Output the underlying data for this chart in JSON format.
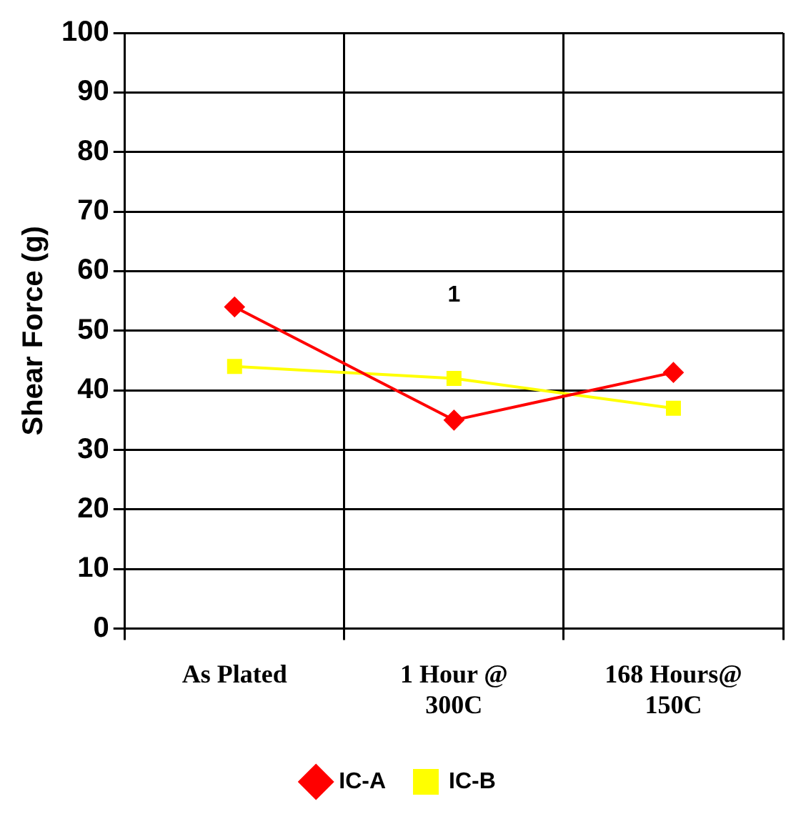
{
  "chart_data": {
    "type": "line",
    "ylabel": "Shear Force (g)",
    "categories": [
      "As Plated",
      "1 Hour @ 300C",
      "168 Hours@ 150C"
    ],
    "series": [
      {
        "name": "IC-A",
        "color": "#ff0000",
        "values": [
          54,
          35,
          43
        ],
        "marker": "diamond"
      },
      {
        "name": "IC-B",
        "color": "#ffff00",
        "values": [
          44,
          42,
          37
        ],
        "marker": "square"
      }
    ],
    "ylim": [
      0,
      100
    ],
    "yticks": [
      0,
      10,
      20,
      30,
      40,
      50,
      60,
      70,
      80,
      90,
      100
    ],
    "grid": true,
    "legend": "bottom",
    "annotations": [
      "1"
    ]
  }
}
